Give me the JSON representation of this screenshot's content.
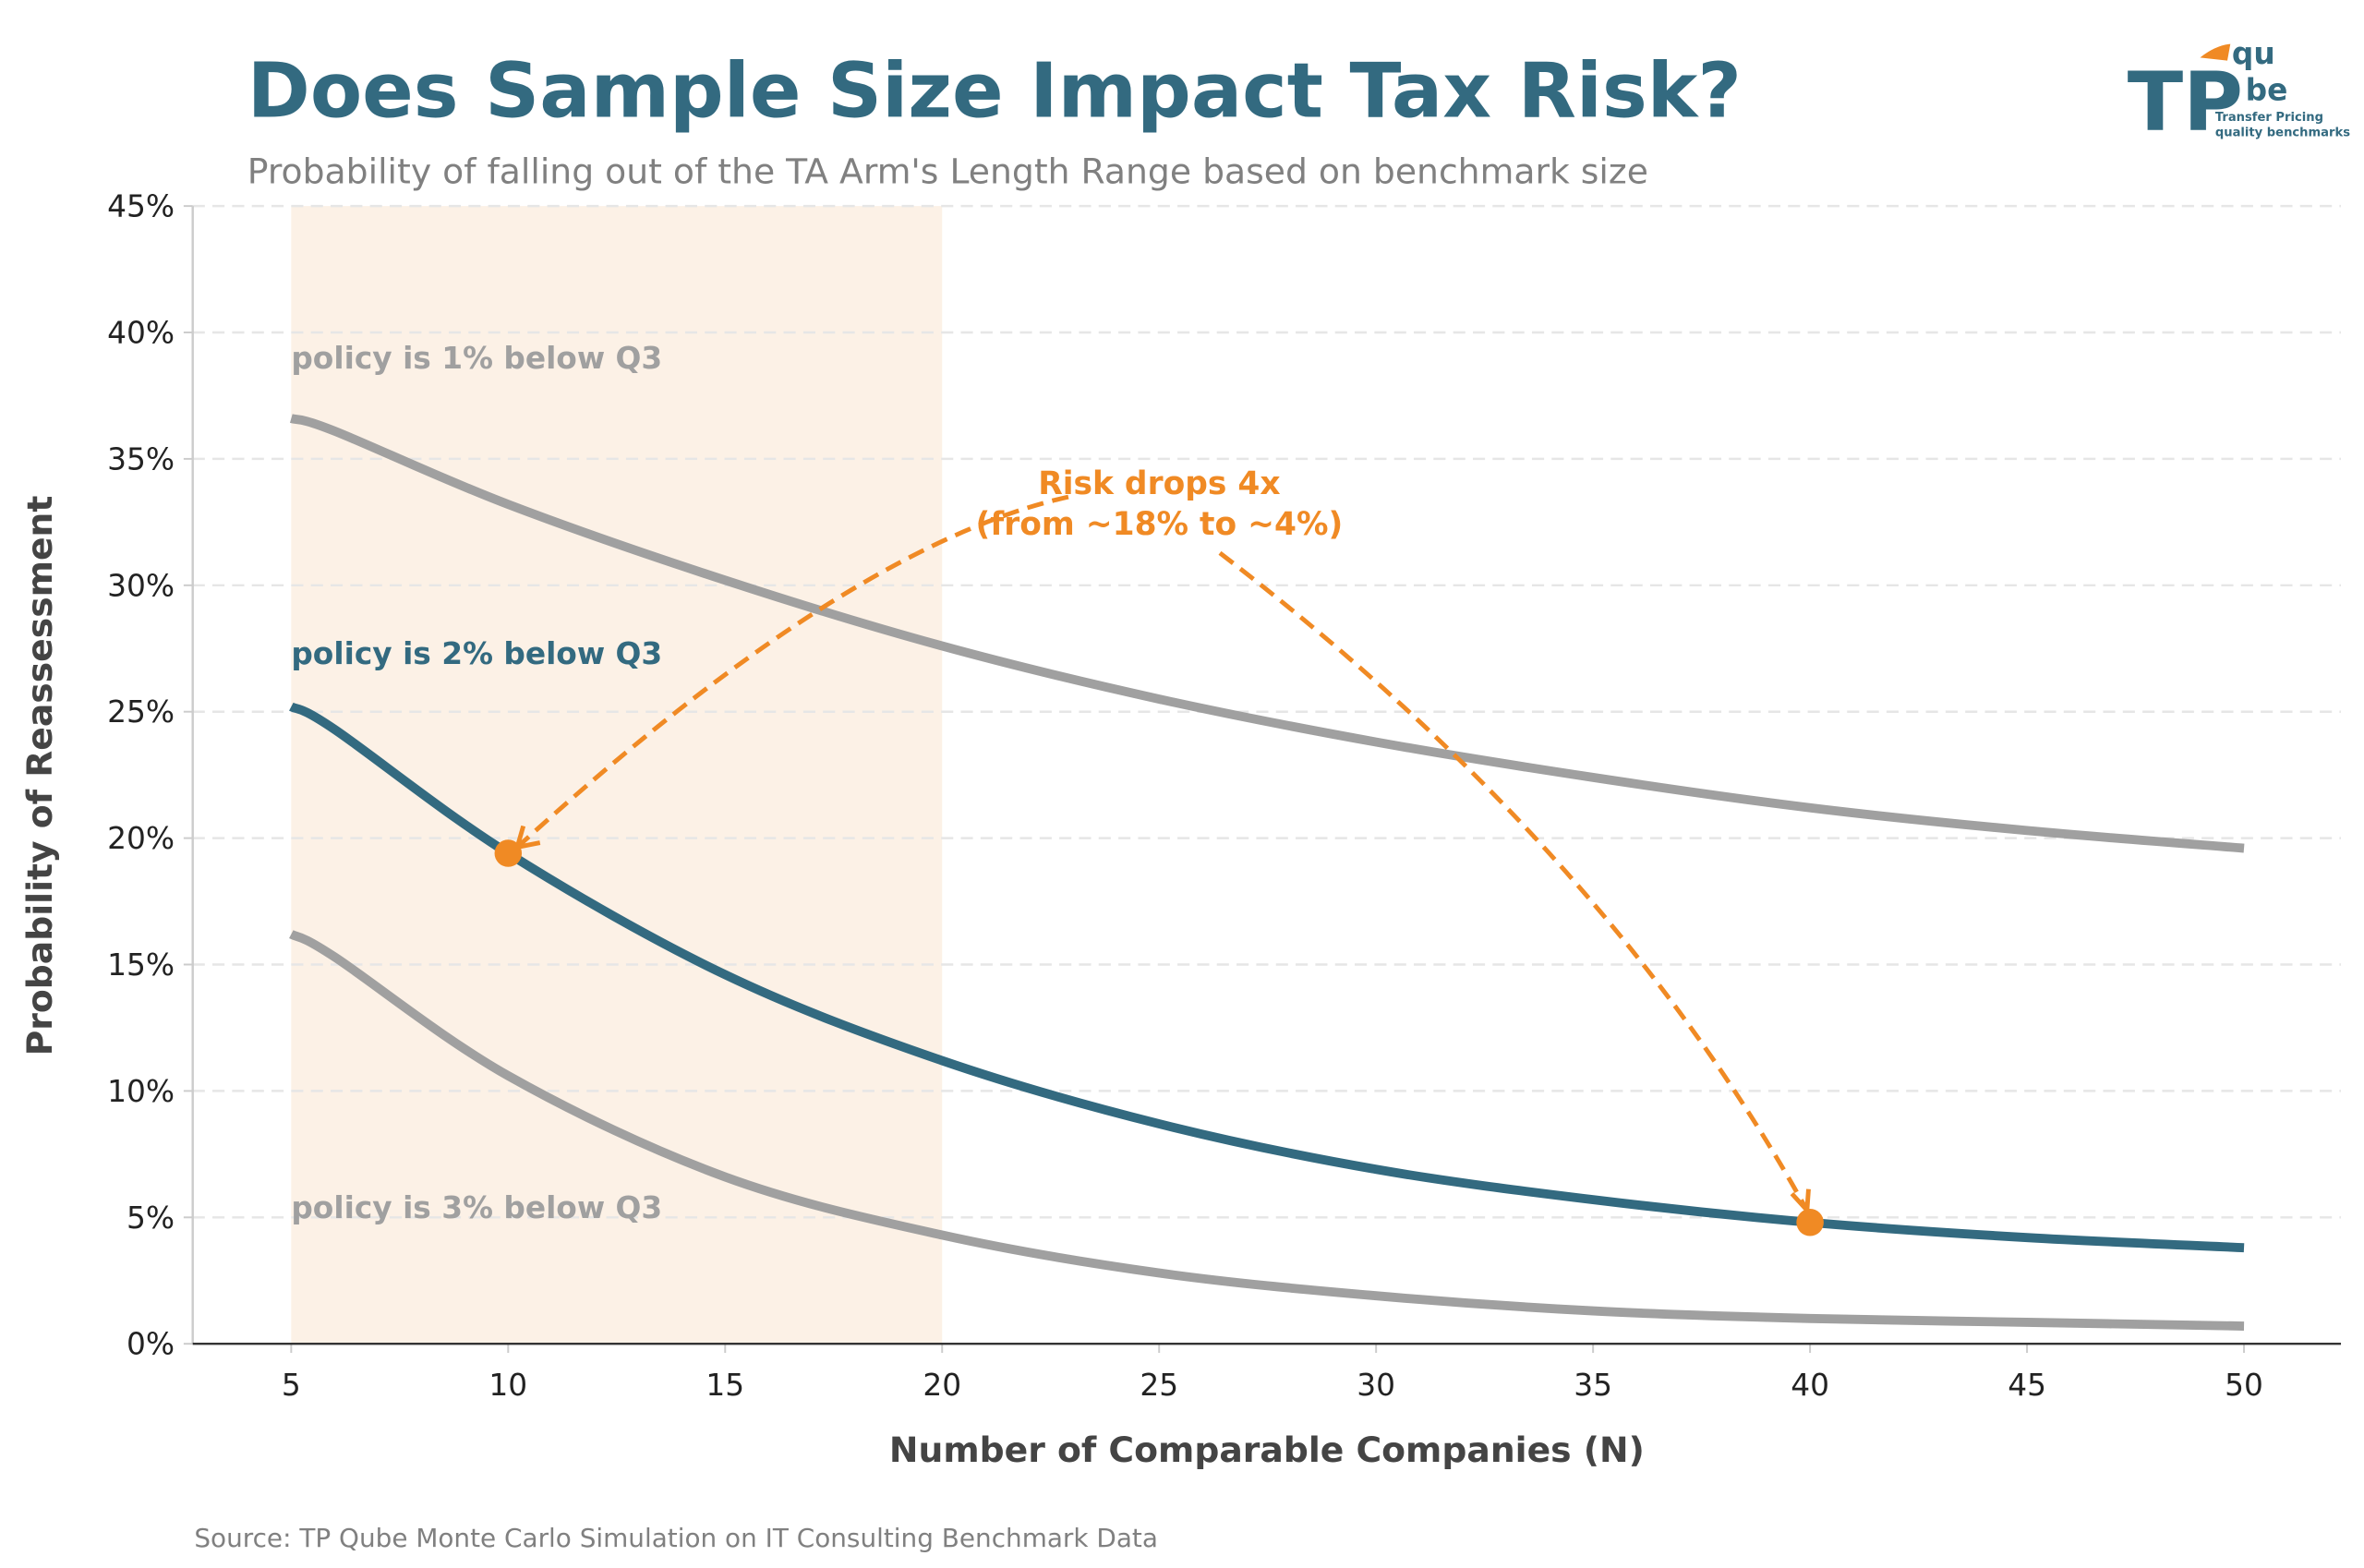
{
  "header": {
    "title": "Does Sample Size Impact Tax Risk?",
    "subtitle": "Probability of falling out of the TA Arm's Length Range based on benchmark size"
  },
  "logo": {
    "text_tp": "TP",
    "text_qu": "qu",
    "text_be": "be",
    "tagline_1": "Transfer Pricing",
    "tagline_2": "quality benchmarks"
  },
  "footer": {
    "source": "Source: TP Qube Monte Carlo Simulation on IT Consulting Benchmark Data"
  },
  "colors": {
    "brand_blue": "#336a80",
    "gray_series": "#a0a0a0",
    "accent_orange": "#f08a24",
    "shaded_region": "#fcf1e6"
  },
  "chart_data": {
    "type": "line",
    "xlabel": "Number of Comparable Companies (N)",
    "ylabel": "Probability of Reassessment",
    "xlim": [
      2.7,
      52.3
    ],
    "ylim": [
      0,
      45
    ],
    "x_ticks": [
      5,
      10,
      15,
      20,
      25,
      30,
      35,
      40,
      45,
      50
    ],
    "y_ticks": [
      0,
      5,
      10,
      15,
      20,
      25,
      30,
      35,
      40,
      45
    ],
    "y_tick_labels": [
      "0%",
      "5%",
      "10%",
      "15%",
      "20%",
      "25%",
      "30%",
      "35%",
      "40%",
      "45%"
    ],
    "grid": "horizontal dashed",
    "shaded_x_range": [
      5,
      20
    ],
    "x": [
      5,
      6,
      10,
      15,
      20,
      25,
      30,
      35,
      40,
      45,
      50
    ],
    "series": [
      {
        "name": "policy is 1% below Q3",
        "color": "#a0a0a0",
        "values": [
          36.6,
          36.1,
          33.2,
          30.2,
          27.6,
          25.5,
          23.8,
          22.4,
          21.2,
          20.3,
          19.6
        ]
      },
      {
        "name": "policy is 2% below Q3",
        "color": "#336a80",
        "values": [
          25.2,
          24.3,
          19.4,
          14.6,
          11.2,
          8.7,
          6.9,
          5.7,
          4.8,
          4.2,
          3.8
        ]
      },
      {
        "name": "policy is 3% below Q3",
        "color": "#a0a0a0",
        "values": [
          16.2,
          15.3,
          10.6,
          6.6,
          4.3,
          2.8,
          1.9,
          1.3,
          1.0,
          0.85,
          0.7
        ]
      }
    ],
    "series_label_y": [
      39,
      27.3,
      5.4
    ],
    "highlight_points": [
      {
        "x": 10,
        "y": 19.4
      },
      {
        "x": 40,
        "y": 4.8
      }
    ],
    "annotation": {
      "line_1": "Risk drops 4x",
      "line_2": "(from ~18% to ~4%)"
    }
  }
}
